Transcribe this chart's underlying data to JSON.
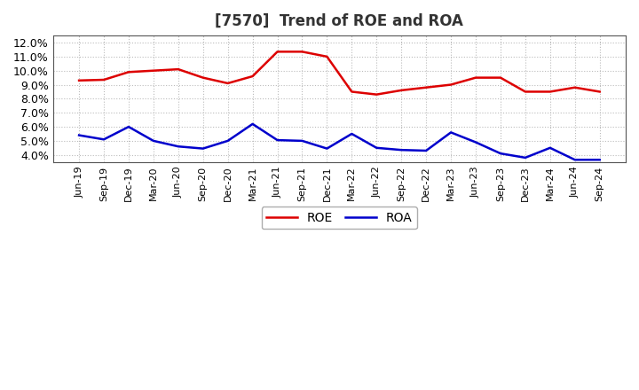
{
  "title": "[7570]  Trend of ROE and ROA",
  "labels": [
    "Jun-19",
    "Sep-19",
    "Dec-19",
    "Mar-20",
    "Jun-20",
    "Sep-20",
    "Dec-20",
    "Mar-21",
    "Jun-21",
    "Sep-21",
    "Dec-21",
    "Mar-22",
    "Jun-22",
    "Sep-22",
    "Dec-22",
    "Mar-23",
    "Jun-23",
    "Sep-23",
    "Dec-23",
    "Mar-24",
    "Jun-24",
    "Sep-24"
  ],
  "ROE": [
    9.3,
    9.35,
    9.9,
    10.0,
    10.1,
    9.5,
    9.1,
    9.6,
    11.35,
    11.35,
    11.0,
    8.5,
    8.3,
    8.6,
    8.8,
    9.0,
    9.5,
    9.5,
    8.5,
    8.5,
    8.8,
    8.5
  ],
  "ROA": [
    5.4,
    5.1,
    6.0,
    5.0,
    4.6,
    4.45,
    5.0,
    6.2,
    5.05,
    5.0,
    4.45,
    5.5,
    4.5,
    4.35,
    4.3,
    5.6,
    4.9,
    4.1,
    3.8,
    4.5,
    3.65,
    3.65
  ],
  "roe_color": "#dd0000",
  "roa_color": "#0000cc",
  "bg_color": "#ffffff",
  "plot_bg_color": "#ffffff",
  "grid_color": "#bbbbbb",
  "ylim_min": 3.5,
  "ylim_max": 12.5,
  "yticks": [
    4.0,
    5.0,
    6.0,
    7.0,
    8.0,
    9.0,
    10.0,
    11.0,
    12.0
  ],
  "line_width": 1.8
}
